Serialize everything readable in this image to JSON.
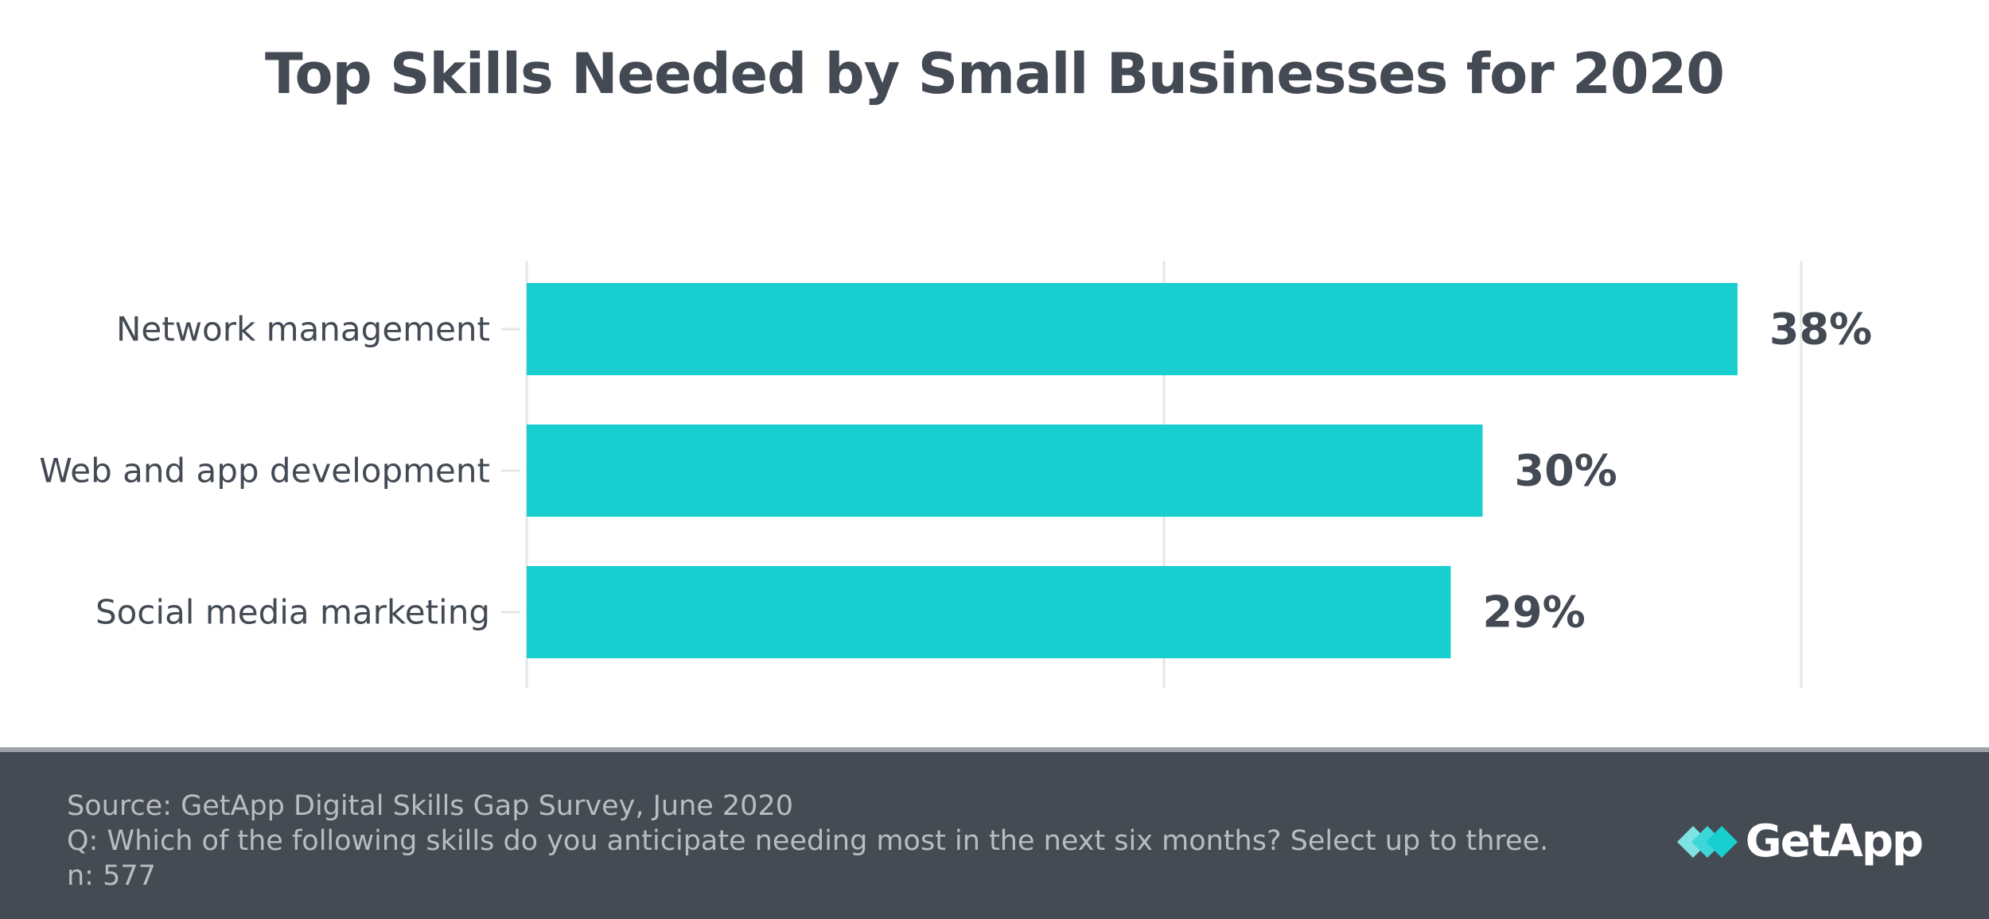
{
  "chart_data": {
    "type": "bar",
    "orientation": "horizontal",
    "title": "Top Skills Needed by Small Businesses for 2020",
    "categories": [
      "Network management",
      "Web and app development",
      "Social media marketing"
    ],
    "values": [
      38,
      30,
      29
    ],
    "value_labels": [
      "38%",
      "30%",
      "29%"
    ],
    "xlim": [
      0,
      40
    ],
    "gridlines": [
      0,
      20,
      40
    ],
    "xlabel": "",
    "ylabel": "",
    "grid": true,
    "bar_color": "#18cecf"
  },
  "footer": {
    "source": "Source: GetApp Digital Skills Gap Survey, June 2020",
    "question": "Q: Which of the following skills do you anticipate needing most in the next six months? Select up to three.",
    "sample": "n: 577"
  },
  "brand": {
    "name": "GetApp",
    "icon": "getapp-logo-icon"
  },
  "colors": {
    "text": "#434a54",
    "footer_bg": "#454b53",
    "footer_text": "#b9bdc2",
    "grid": "#e6e7e8",
    "bar": "#18cecf"
  }
}
